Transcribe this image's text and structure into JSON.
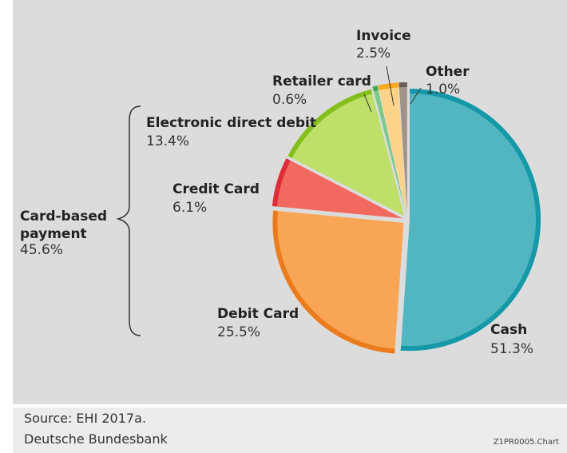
{
  "chart_data": {
    "type": "pie",
    "title": "",
    "slices": [
      {
        "label": "Cash",
        "value": 51.3,
        "value_text": "51.3%",
        "fill": "#52b6c1",
        "edge": "#1598a8"
      },
      {
        "label": "Debit Card",
        "value": 25.5,
        "value_text": "25.5%",
        "fill": "#f8a655",
        "edge": "#ea7c1d"
      },
      {
        "label": "Credit Card",
        "value": 6.1,
        "value_text": "6.1%",
        "fill": "#f2695f",
        "edge": "#de2e39"
      },
      {
        "label": "Electronic direct debit",
        "value": 13.4,
        "value_text": "13.4%",
        "fill": "#bedf6a",
        "edge": "#84bf1c"
      },
      {
        "label": "Retailer card",
        "value": 0.6,
        "value_text": "0.6%",
        "fill": "#7cc98a",
        "edge": "#3ea84f"
      },
      {
        "label": "Invoice",
        "value": 2.5,
        "value_text": "2.5%",
        "fill": "#fdd38a",
        "edge": "#f7a81b"
      },
      {
        "label": "Other",
        "value": 1.0,
        "value_text": "1.0%",
        "fill": "#a19288",
        "edge": "#6d5e55"
      }
    ],
    "group_annotation": {
      "label_line1": "Card-based",
      "label_line2": "payment",
      "value_text": "45.6%"
    }
  },
  "footer": {
    "source": "Source: EHI 2017a.",
    "institution": "Deutsche Bundesbank",
    "code": "Z1PR0005.Chart"
  }
}
